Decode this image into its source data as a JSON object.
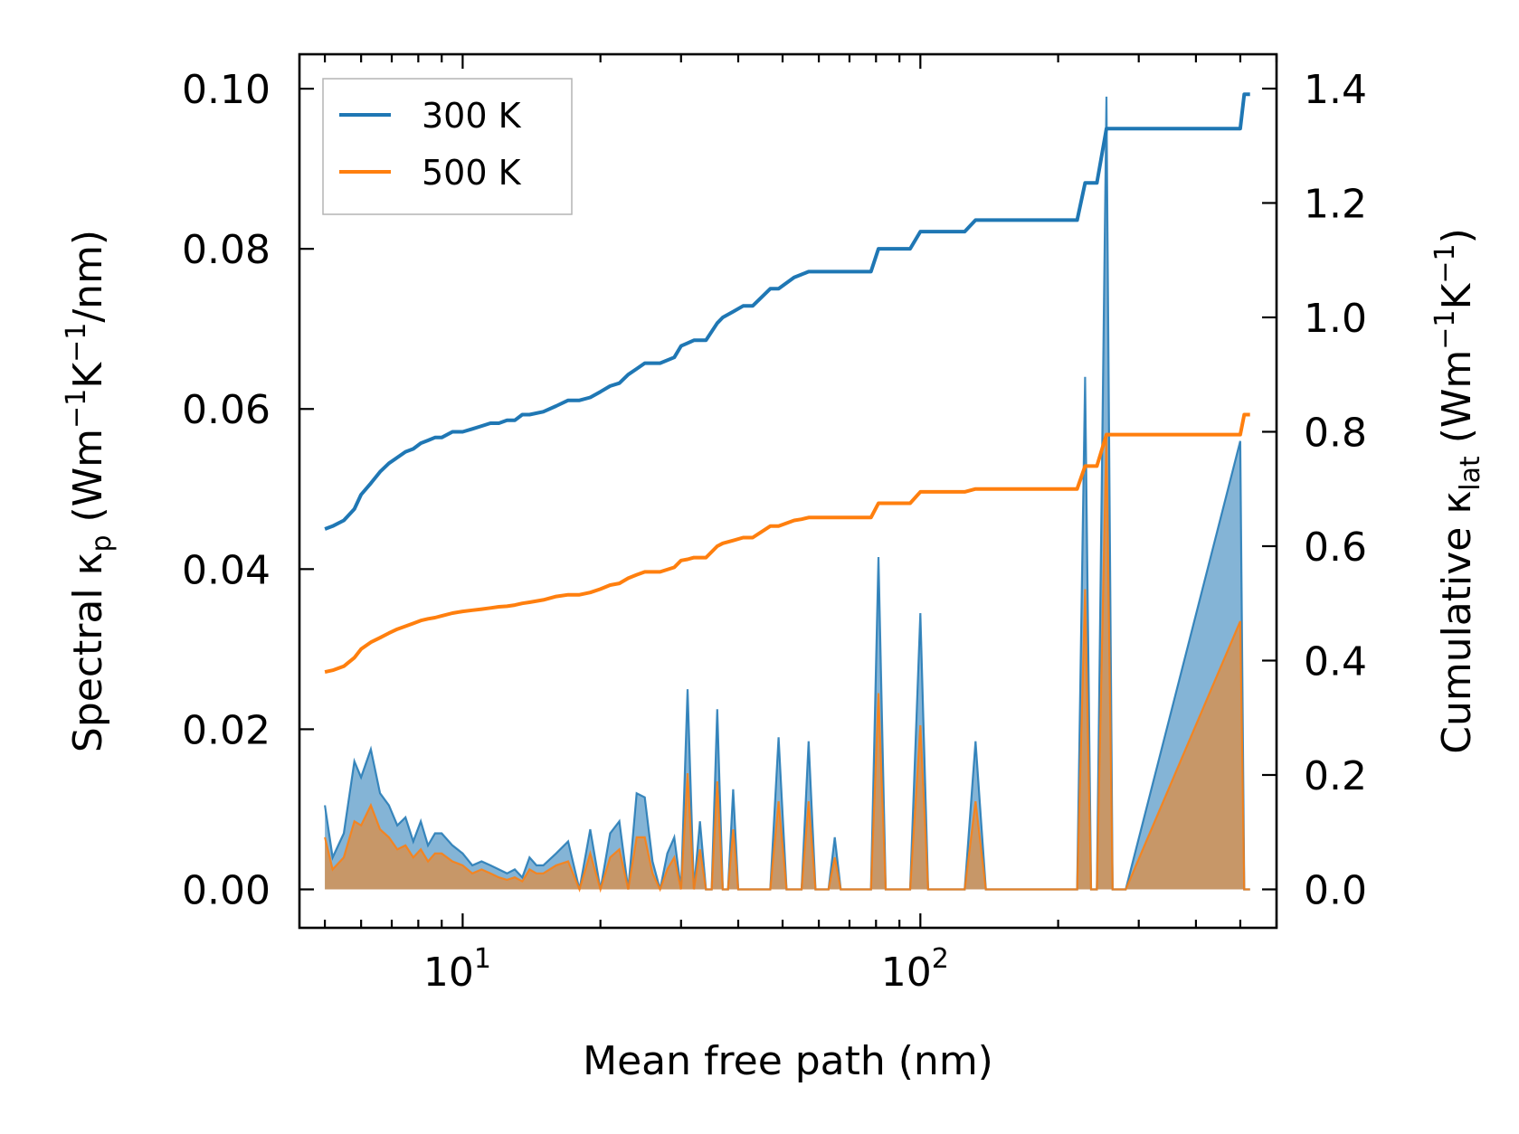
{
  "chart_data": {
    "type": "line",
    "xscale": "log",
    "xlim": [
      4.4,
      600
    ],
    "ylim_left": [
      -0.0048,
      0.1043
    ],
    "ylim_right": [
      -0.0672,
      1.46
    ],
    "xlabel": "Mean free path (nm)",
    "ylabel_left": {
      "main": "Spectral κ",
      "sub": "p",
      "paren_open": " (Wm",
      "sup1": "−1",
      "mid": "K",
      "sup2": "−1",
      "tail": "/nm)"
    },
    "ylabel_right": {
      "main": "Cumulative κ",
      "sub": "lat",
      "paren_open": " (Wm",
      "sup1": "−1",
      "mid": "K",
      "sup2": "−1",
      "tail": ")"
    },
    "x_ticks": [
      {
        "value": 10,
        "base": "10",
        "exp": "1"
      },
      {
        "value": 100,
        "base": "10",
        "exp": "2"
      }
    ],
    "y_left_ticks": [
      {
        "value": 0.0,
        "label": "0.00"
      },
      {
        "value": 0.02,
        "label": "0.02"
      },
      {
        "value": 0.04,
        "label": "0.04"
      },
      {
        "value": 0.06,
        "label": "0.06"
      },
      {
        "value": 0.08,
        "label": "0.08"
      },
      {
        "value": 0.1,
        "label": "0.10"
      }
    ],
    "y_right_ticks": [
      {
        "value": 0.0,
        "label": "0.0"
      },
      {
        "value": 0.2,
        "label": "0.2"
      },
      {
        "value": 0.4,
        "label": "0.4"
      },
      {
        "value": 0.6,
        "label": "0.6"
      },
      {
        "value": 0.8,
        "label": "0.8"
      },
      {
        "value": 1.0,
        "label": "1.0"
      },
      {
        "value": 1.2,
        "label": "1.2"
      },
      {
        "value": 1.4,
        "label": "1.4"
      }
    ],
    "legend": {
      "position": "upper-left",
      "entries": [
        "300 K",
        "500 K"
      ]
    },
    "series": [
      {
        "name": "300 K",
        "color": "#1f77b4",
        "spectral_axis": "left",
        "cumulative_axis": "right",
        "spectral": {
          "x": [
            5.0,
            5.2,
            5.5,
            5.8,
            6.0,
            6.3,
            6.6,
            6.9,
            7.2,
            7.5,
            7.8,
            8.1,
            8.4,
            8.7,
            9.0,
            9.5,
            10.0,
            10.5,
            11.0,
            11.5,
            12.0,
            12.5,
            13.0,
            13.5,
            14.0,
            14.5,
            15.0,
            16.0,
            17.0,
            18.0,
            19.0,
            20.0,
            21.0,
            22.0,
            23.0,
            24.0,
            25.0,
            26.0,
            27.0,
            28.0,
            29.0,
            30.0,
            31.0,
            32.0,
            33.0,
            34.0,
            35.0,
            36.0,
            37.0,
            38.0,
            39.0,
            40.0,
            41.0,
            42.0,
            43.0,
            45.0,
            47.0,
            49.0,
            51.0,
            53.0,
            55.0,
            57.0,
            59.0,
            61.0,
            63.0,
            65.0,
            67.0,
            70.0,
            75.0,
            78.0,
            81.0,
            84.0,
            87.0,
            95.0,
            100.0,
            104.0,
            125.0,
            132.0,
            139.0,
            220.0,
            229.0,
            236.0,
            243.0,
            255.0,
            263.0,
            272.0,
            281.0,
            500.0,
            510.0,
            525.0
          ],
          "y": [
            0.0105,
            0.004,
            0.007,
            0.016,
            0.014,
            0.0175,
            0.012,
            0.0105,
            0.008,
            0.009,
            0.006,
            0.0085,
            0.0055,
            0.007,
            0.007,
            0.0055,
            0.0045,
            0.003,
            0.0035,
            0.003,
            0.0025,
            0.002,
            0.0025,
            0.0015,
            0.004,
            0.003,
            0.003,
            0.0045,
            0.006,
            0.0,
            0.0075,
            0.0,
            0.007,
            0.0085,
            0.0,
            0.012,
            0.0115,
            0.0035,
            0.0,
            0.0045,
            0.0065,
            0.0,
            0.025,
            0.0,
            0.0085,
            0.0,
            0.0,
            0.0225,
            0.0,
            0.0,
            0.0125,
            0.0,
            0.0,
            0.0,
            0.0,
            0.0,
            0.0,
            0.019,
            0.0,
            0.0,
            0.0,
            0.0185,
            0.0,
            0.0,
            0.0,
            0.0065,
            0.0,
            0.0,
            0.0,
            0.0,
            0.0415,
            0.0,
            0.0,
            0.0,
            0.0345,
            0.0,
            0.0,
            0.0185,
            0.0,
            0.0,
            0.064,
            0.0,
            0.0,
            0.099,
            0.0,
            0.0,
            0.0,
            0.056,
            0.0,
            0.0
          ]
        },
        "cumulative": {
          "x": [
            5.0,
            5.2,
            5.5,
            5.8,
            6.0,
            6.3,
            6.6,
            6.9,
            7.2,
            7.5,
            7.8,
            8.1,
            8.4,
            8.7,
            9.0,
            9.5,
            10.0,
            10.5,
            11.0,
            11.5,
            12.0,
            12.5,
            13.0,
            13.5,
            14.0,
            15.0,
            16.0,
            17.0,
            18.0,
            19.0,
            20.0,
            21.0,
            22.0,
            23.0,
            24.0,
            25.0,
            27.0,
            29.0,
            30.0,
            31.0,
            32.0,
            34.0,
            36.0,
            37.0,
            39.0,
            41.0,
            43.0,
            47.0,
            49.0,
            53.0,
            55.0,
            57.0,
            61.0,
            65.0,
            78.0,
            81.0,
            95.0,
            100.0,
            125.0,
            132.0,
            220.0,
            229.0,
            243.0,
            255.0,
            263.0,
            500.0,
            510.0,
            525.0
          ],
          "y": [
            0.63,
            0.635,
            0.645,
            0.665,
            0.69,
            0.71,
            0.73,
            0.745,
            0.755,
            0.765,
            0.77,
            0.78,
            0.785,
            0.79,
            0.79,
            0.8,
            0.8,
            0.805,
            0.81,
            0.815,
            0.815,
            0.82,
            0.82,
            0.83,
            0.83,
            0.835,
            0.845,
            0.855,
            0.855,
            0.86,
            0.87,
            0.88,
            0.885,
            0.9,
            0.91,
            0.92,
            0.92,
            0.93,
            0.95,
            0.955,
            0.96,
            0.96,
            0.99,
            1.0,
            1.01,
            1.02,
            1.02,
            1.05,
            1.05,
            1.07,
            1.075,
            1.08,
            1.08,
            1.08,
            1.08,
            1.12,
            1.12,
            1.15,
            1.15,
            1.17,
            1.17,
            1.235,
            1.235,
            1.33,
            1.33,
            1.33,
            1.39,
            1.39
          ]
        }
      },
      {
        "name": "500 K",
        "color": "#ff7f0e",
        "spectral_axis": "left",
        "cumulative_axis": "right",
        "spectral": {
          "x": [
            5.0,
            5.2,
            5.5,
            5.8,
            6.0,
            6.3,
            6.6,
            6.9,
            7.2,
            7.5,
            7.8,
            8.1,
            8.4,
            8.7,
            9.0,
            9.5,
            10.0,
            10.5,
            11.0,
            11.5,
            12.0,
            12.5,
            13.0,
            13.5,
            14.0,
            14.5,
            15.0,
            16.0,
            17.0,
            18.0,
            19.0,
            20.0,
            21.0,
            22.0,
            23.0,
            24.0,
            25.0,
            26.0,
            27.0,
            28.0,
            29.0,
            30.0,
            31.0,
            32.0,
            33.0,
            34.0,
            35.0,
            36.0,
            37.0,
            38.0,
            39.0,
            40.0,
            41.0,
            42.0,
            43.0,
            45.0,
            47.0,
            49.0,
            51.0,
            53.0,
            55.0,
            57.0,
            59.0,
            61.0,
            63.0,
            65.0,
            67.0,
            70.0,
            75.0,
            78.0,
            81.0,
            84.0,
            87.0,
            95.0,
            100.0,
            104.0,
            125.0,
            132.0,
            139.0,
            220.0,
            229.0,
            236.0,
            243.0,
            255.0,
            263.0,
            272.0,
            281.0,
            500.0,
            510.0,
            525.0
          ],
          "y": [
            0.0065,
            0.0025,
            0.004,
            0.0085,
            0.008,
            0.0105,
            0.0075,
            0.0065,
            0.005,
            0.0055,
            0.004,
            0.005,
            0.0035,
            0.0045,
            0.0045,
            0.0035,
            0.003,
            0.002,
            0.0025,
            0.002,
            0.0015,
            0.0012,
            0.0015,
            0.001,
            0.0025,
            0.002,
            0.002,
            0.003,
            0.0035,
            0.0,
            0.0045,
            0.0,
            0.004,
            0.005,
            0.0,
            0.0065,
            0.0065,
            0.002,
            0.0,
            0.0025,
            0.004,
            0.0,
            0.0145,
            0.0,
            0.005,
            0.0,
            0.0,
            0.0135,
            0.0,
            0.0,
            0.0075,
            0.0,
            0.0,
            0.0,
            0.0,
            0.0,
            0.0,
            0.011,
            0.0,
            0.0,
            0.0,
            0.011,
            0.0,
            0.0,
            0.0,
            0.004,
            0.0,
            0.0,
            0.0,
            0.0,
            0.0245,
            0.0,
            0.0,
            0.0,
            0.0205,
            0.0,
            0.0,
            0.011,
            0.0,
            0.0,
            0.0375,
            0.0,
            0.0,
            0.057,
            0.0,
            0.0,
            0.0,
            0.0335,
            0.0,
            0.0
          ]
        },
        "cumulative": {
          "x": [
            5.0,
            5.2,
            5.5,
            5.8,
            6.0,
            6.3,
            6.6,
            6.9,
            7.2,
            7.5,
            7.8,
            8.1,
            8.4,
            8.7,
            9.0,
            9.5,
            10.0,
            10.5,
            11.0,
            11.5,
            12.0,
            12.5,
            13.0,
            13.5,
            14.0,
            15.0,
            16.0,
            17.0,
            18.0,
            19.0,
            20.0,
            21.0,
            22.0,
            23.0,
            24.0,
            25.0,
            27.0,
            29.0,
            30.0,
            31.0,
            32.0,
            34.0,
            36.0,
            37.0,
            39.0,
            41.0,
            43.0,
            47.0,
            49.0,
            53.0,
            55.0,
            57.0,
            61.0,
            65.0,
            78.0,
            81.0,
            95.0,
            100.0,
            125.0,
            132.0,
            220.0,
            229.0,
            243.0,
            255.0,
            263.0,
            500.0,
            510.0,
            525.0
          ],
          "y": [
            0.38,
            0.383,
            0.39,
            0.405,
            0.42,
            0.432,
            0.44,
            0.448,
            0.455,
            0.46,
            0.465,
            0.47,
            0.473,
            0.475,
            0.478,
            0.483,
            0.486,
            0.488,
            0.49,
            0.492,
            0.494,
            0.495,
            0.497,
            0.5,
            0.502,
            0.506,
            0.512,
            0.515,
            0.515,
            0.519,
            0.525,
            0.532,
            0.535,
            0.544,
            0.55,
            0.555,
            0.555,
            0.563,
            0.575,
            0.577,
            0.58,
            0.58,
            0.6,
            0.605,
            0.61,
            0.615,
            0.615,
            0.635,
            0.635,
            0.645,
            0.647,
            0.65,
            0.65,
            0.65,
            0.65,
            0.675,
            0.675,
            0.695,
            0.695,
            0.7,
            0.7,
            0.74,
            0.74,
            0.795,
            0.795,
            0.795,
            0.83,
            0.83
          ]
        }
      }
    ]
  }
}
